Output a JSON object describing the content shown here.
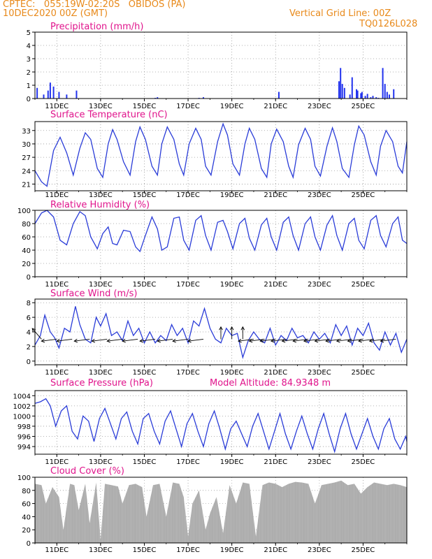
{
  "header": {
    "left_line1": "CPTEC:   055:19W-02:20S   OBIDOS (PA)",
    "left_line2": "10DEC2020 00Z (GMT)",
    "right_line1": "Vertical Grid Line: 00Z",
    "right_line2": "TQ0126L028"
  },
  "chart_data": [
    {
      "type": "bar",
      "title": "Precipitation (mm/h)",
      "x_ticks": [
        "11DEC",
        "13DEC",
        "15DEC",
        "17DEC",
        "19DEC",
        "21DEC",
        "23DEC",
        "25DEC"
      ],
      "ylim": [
        0,
        5
      ],
      "y_ticks": [
        0,
        1,
        2,
        3,
        4,
        5
      ],
      "x": [
        0.1,
        0.4,
        0.6,
        0.7,
        0.85,
        1.1,
        1.45,
        1.9,
        5.5,
        5.6,
        7.5,
        7.7,
        11.15,
        13.9,
        13.97,
        14.05,
        14.15,
        14.4,
        14.5,
        14.7,
        14.75,
        14.9,
        14.95,
        15.1,
        15.2,
        15.35,
        15.45,
        15.6,
        15.7,
        15.9,
        16.0,
        16.1,
        16.2,
        16.4
      ],
      "values": [
        0.8,
        0.3,
        0.6,
        1.2,
        0.9,
        0.5,
        0.3,
        0.6,
        0.05,
        0.1,
        0.05,
        0.1,
        0.5,
        1.3,
        2.3,
        1.1,
        0.8,
        0.3,
        1.6,
        0.7,
        0.6,
        0.4,
        0.5,
        0.2,
        0.35,
        0.1,
        0.2,
        0.1,
        0.05,
        2.3,
        1.1,
        0.5,
        0.3,
        0.7
      ],
      "grid": true
    },
    {
      "type": "line",
      "title": "Surface Temperature (nC)",
      "x_ticks": [
        "11DEC",
        "13DEC",
        "15DEC",
        "17DEC",
        "19DEC",
        "21DEC",
        "23DEC",
        "25DEC"
      ],
      "ylim": [
        19.5,
        35
      ],
      "y_ticks": [
        21,
        24,
        27,
        30,
        33
      ],
      "x": [
        0,
        0.3,
        0.55,
        0.85,
        1.15,
        1.45,
        1.75,
        2.05,
        2.3,
        2.55,
        2.85,
        3.1,
        3.35,
        3.55,
        3.75,
        4.05,
        4.35,
        4.6,
        4.8,
        5.05,
        5.35,
        5.6,
        5.8,
        6.05,
        6.35,
        6.6,
        6.8,
        7.05,
        7.35,
        7.6,
        7.8,
        8.05,
        8.35,
        8.6,
        8.8,
        9.05,
        9.35,
        9.6,
        9.8,
        10.05,
        10.35,
        10.6,
        10.8,
        11.05,
        11.35,
        11.6,
        11.8,
        12.05,
        12.35,
        12.6,
        12.8,
        13.05,
        13.35,
        13.6,
        13.8,
        14.05,
        14.35,
        14.6,
        14.8,
        15.05,
        15.35,
        15.6,
        15.8,
        16.05,
        16.35,
        16.6,
        16.8,
        17.0
      ],
      "values": [
        24.0,
        21.5,
        20.5,
        28.5,
        31.5,
        28.0,
        23.0,
        29.0,
        32.5,
        31.0,
        24.5,
        22.5,
        30.0,
        33.2,
        31.0,
        26.0,
        23.0,
        30.5,
        33.8,
        31.0,
        25.0,
        23.0,
        30.0,
        33.8,
        31.0,
        25.5,
        23.0,
        30.0,
        33.5,
        31.0,
        25.0,
        23.0,
        30.5,
        34.5,
        32.0,
        25.5,
        23.0,
        30.0,
        33.5,
        31.0,
        24.5,
        22.5,
        30.0,
        33.3,
        30.5,
        25.0,
        22.5,
        29.8,
        33.5,
        31.0,
        25.0,
        22.8,
        29.5,
        33.6,
        30.5,
        24.5,
        22.5,
        29.8,
        34.0,
        32.0,
        26.0,
        23.0,
        29.5,
        33.0,
        30.5,
        25.0,
        23.5,
        30.5
      ],
      "grid": true
    },
    {
      "type": "line",
      "title": "Relative Humidity (%)",
      "x_ticks": [
        "11DEC",
        "13DEC",
        "15DEC",
        "17DEC",
        "19DEC",
        "21DEC",
        "23DEC",
        "25DEC"
      ],
      "ylim": [
        0,
        100
      ],
      "y_ticks": [
        0,
        20,
        40,
        60,
        80,
        100
      ],
      "x": [
        0,
        0.3,
        0.55,
        0.85,
        1.15,
        1.45,
        1.75,
        2.05,
        2.3,
        2.55,
        2.85,
        3.1,
        3.35,
        3.55,
        3.75,
        4.05,
        4.35,
        4.6,
        4.8,
        5.05,
        5.35,
        5.6,
        5.8,
        6.05,
        6.35,
        6.6,
        6.8,
        7.05,
        7.35,
        7.6,
        7.8,
        8.05,
        8.35,
        8.6,
        8.8,
        9.05,
        9.35,
        9.6,
        9.8,
        10.05,
        10.35,
        10.6,
        10.8,
        11.05,
        11.35,
        11.6,
        11.8,
        12.05,
        12.35,
        12.6,
        12.8,
        13.05,
        13.35,
        13.6,
        13.8,
        14.05,
        14.35,
        14.6,
        14.8,
        15.05,
        15.35,
        15.6,
        15.8,
        16.05,
        16.35,
        16.6,
        16.8,
        17.0
      ],
      "values": [
        80,
        96,
        100,
        90,
        55,
        48,
        80,
        98,
        92,
        60,
        42,
        65,
        75,
        50,
        48,
        70,
        68,
        45,
        38,
        62,
        90,
        72,
        40,
        45,
        88,
        90,
        55,
        40,
        85,
        92,
        62,
        40,
        82,
        85,
        68,
        42,
        80,
        88,
        58,
        40,
        78,
        88,
        60,
        40,
        82,
        90,
        62,
        40,
        80,
        90,
        60,
        40,
        78,
        92,
        62,
        40,
        80,
        88,
        55,
        42,
        85,
        92,
        62,
        45,
        80,
        90,
        55,
        50
      ],
      "grid": true
    },
    {
      "type": "line",
      "title": "Surface Wind (m/s)",
      "x_ticks": [
        "11DEC",
        "13DEC",
        "15DEC",
        "17DEC",
        "19DEC",
        "21DEC",
        "23DEC",
        "25DEC"
      ],
      "ylim": [
        -0.5,
        8.5
      ],
      "y_ticks": [
        0,
        2,
        4,
        6,
        8
      ],
      "x": [
        0,
        0.25,
        0.45,
        0.7,
        0.9,
        1.1,
        1.35,
        1.6,
        1.85,
        2.05,
        2.3,
        2.55,
        2.8,
        3.0,
        3.25,
        3.5,
        3.75,
        4.0,
        4.25,
        4.5,
        4.75,
        5.0,
        5.25,
        5.5,
        5.75,
        6.0,
        6.25,
        6.5,
        6.75,
        7.0,
        7.25,
        7.5,
        7.75,
        8.0,
        8.25,
        8.5,
        8.75,
        9.0,
        9.25,
        9.5,
        9.75,
        10.0,
        10.25,
        10.5,
        10.75,
        11.0,
        11.25,
        11.5,
        11.75,
        12.0,
        12.25,
        12.5,
        12.75,
        13.0,
        13.25,
        13.5,
        13.75,
        14.0,
        14.25,
        14.5,
        14.75,
        15.0,
        15.25,
        15.5,
        15.75,
        16.0,
        16.25,
        16.5,
        16.75,
        17.0
      ],
      "values": [
        2.2,
        3.5,
        6.3,
        4.0,
        3.2,
        1.8,
        4.5,
        4.0,
        7.5,
        5.0,
        3.0,
        2.5,
        6.0,
        4.8,
        6.5,
        3.5,
        4.0,
        2.8,
        5.5,
        3.5,
        4.5,
        2.5,
        4.0,
        2.5,
        3.5,
        2.8,
        5.0,
        3.5,
        4.5,
        2.5,
        5.5,
        4.8,
        7.2,
        4.5,
        3.0,
        2.5,
        4.5,
        3.5,
        3.8,
        0.5,
        2.8,
        4.0,
        3.0,
        2.5,
        4.5,
        2.2,
        3.5,
        2.8,
        4.5,
        3.2,
        3.5,
        2.5,
        4.0,
        3.0,
        3.8,
        2.5,
        5.0,
        3.5,
        4.8,
        2.2,
        4.5,
        3.5,
        5.2,
        2.5,
        1.5,
        4.0,
        2.2,
        3.8,
        1.2,
        3.0
      ],
      "wind_vectors_x": [
        0.3,
        1.0,
        1.7,
        2.5,
        3.3,
        4.0,
        4.7,
        5.5,
        6.3,
        7.0,
        7.7,
        8.5,
        9.0,
        9.5,
        10.0,
        10.5,
        11.0,
        11.5,
        12.0,
        12.5,
        13.0,
        13.5,
        14.0,
        14.5,
        15.0,
        15.5,
        16.0,
        16.5
      ],
      "wind_vectors_dir": [
        "NW",
        "W",
        "W",
        "W",
        "W",
        "W",
        "W",
        "W",
        "W",
        "W",
        "W",
        "N",
        "N",
        "N",
        "W",
        "W",
        "W",
        "W",
        "W",
        "W",
        "W",
        "W",
        "W",
        "W",
        "W",
        "W",
        "W",
        "W"
      ],
      "grid": true
    },
    {
      "type": "line",
      "title": "Surface Pressure (hPa)",
      "annotation": "Model Altitude: 84.9348 m",
      "x_ticks": [
        "11DEC",
        "13DEC",
        "15DEC",
        "17DEC",
        "19DEC",
        "21DEC",
        "23DEC",
        "25DEC"
      ],
      "ylim": [
        992.5,
        1005
      ],
      "y_ticks": [
        994,
        996,
        998,
        1000,
        1002,
        1004
      ],
      "x": [
        0,
        0.25,
        0.5,
        0.7,
        0.95,
        1.2,
        1.45,
        1.7,
        1.95,
        2.2,
        2.45,
        2.7,
        2.95,
        3.2,
        3.45,
        3.7,
        3.95,
        4.2,
        4.45,
        4.7,
        4.95,
        5.2,
        5.45,
        5.7,
        5.95,
        6.2,
        6.45,
        6.7,
        6.95,
        7.2,
        7.45,
        7.7,
        7.95,
        8.2,
        8.45,
        8.7,
        8.95,
        9.2,
        9.45,
        9.7,
        9.95,
        10.2,
        10.45,
        10.7,
        10.95,
        11.2,
        11.45,
        11.7,
        11.95,
        12.2,
        12.45,
        12.7,
        12.95,
        13.2,
        13.45,
        13.7,
        13.95,
        14.2,
        14.45,
        14.7,
        14.95,
        15.2,
        15.45,
        15.7,
        15.95,
        16.2,
        16.45,
        16.7,
        16.95,
        17.0
      ],
      "values": [
        1002.5,
        1002.8,
        1003.4,
        1002.0,
        998.0,
        1001.0,
        1002.0,
        997.0,
        995.5,
        1000.0,
        999.0,
        995.0,
        999.5,
        1001.5,
        998.5,
        995.5,
        999.5,
        1000.8,
        997.0,
        994.5,
        999.5,
        1000.5,
        997.0,
        994.5,
        999.0,
        1001.0,
        997.5,
        994.0,
        998.5,
        1000.5,
        997.0,
        994.0,
        998.5,
        1001.0,
        997.5,
        993.5,
        997.5,
        999.0,
        996.5,
        994.0,
        998.0,
        1000.5,
        997.0,
        993.5,
        997.0,
        1000.5,
        996.5,
        993.5,
        997.0,
        1000.0,
        996.5,
        993.5,
        997.5,
        1000.5,
        996.5,
        993.0,
        997.5,
        1000.5,
        996.5,
        993.5,
        996.5,
        999.5,
        996.0,
        993.5,
        997.5,
        999.5,
        995.5,
        993.5,
        996.0,
        995.0
      ],
      "grid": true
    },
    {
      "type": "area",
      "title": "Cloud Cover (%)",
      "x_ticks": [
        "11DEC",
        "13DEC",
        "15DEC",
        "17DEC",
        "19DEC",
        "21DEC",
        "23DEC",
        "25DEC"
      ],
      "ylim": [
        0,
        100
      ],
      "y_ticks": [
        0,
        20,
        40,
        60,
        80,
        100
      ],
      "x": [
        0,
        0.3,
        0.5,
        0.8,
        1.1,
        1.3,
        1.6,
        1.8,
        2.0,
        2.3,
        2.5,
        2.8,
        3.0,
        3.2,
        3.5,
        3.8,
        4.0,
        4.3,
        4.6,
        4.9,
        5.1,
        5.4,
        5.7,
        6.0,
        6.3,
        6.6,
        6.8,
        7.0,
        7.2,
        7.5,
        7.8,
        8.0,
        8.3,
        8.6,
        8.9,
        9.2,
        9.5,
        9.8,
        10.1,
        10.4,
        10.7,
        11.0,
        11.3,
        11.6,
        11.9,
        12.2,
        12.5,
        12.8,
        13.1,
        13.4,
        13.7,
        14.0,
        14.3,
        14.6,
        14.9,
        15.2,
        15.5,
        15.8,
        16.1,
        16.4,
        16.7,
        17.0
      ],
      "values": [
        90,
        88,
        60,
        85,
        70,
        20,
        90,
        88,
        50,
        90,
        30,
        92,
        5,
        90,
        88,
        86,
        60,
        88,
        90,
        85,
        40,
        88,
        90,
        40,
        92,
        90,
        70,
        10,
        60,
        80,
        20,
        45,
        70,
        15,
        88,
        60,
        92,
        90,
        10,
        88,
        92,
        90,
        85,
        90,
        93,
        92,
        90,
        60,
        88,
        90,
        92,
        95,
        88,
        90,
        75,
        85,
        92,
        90,
        88,
        90,
        88,
        85
      ],
      "grid": true
    }
  ]
}
